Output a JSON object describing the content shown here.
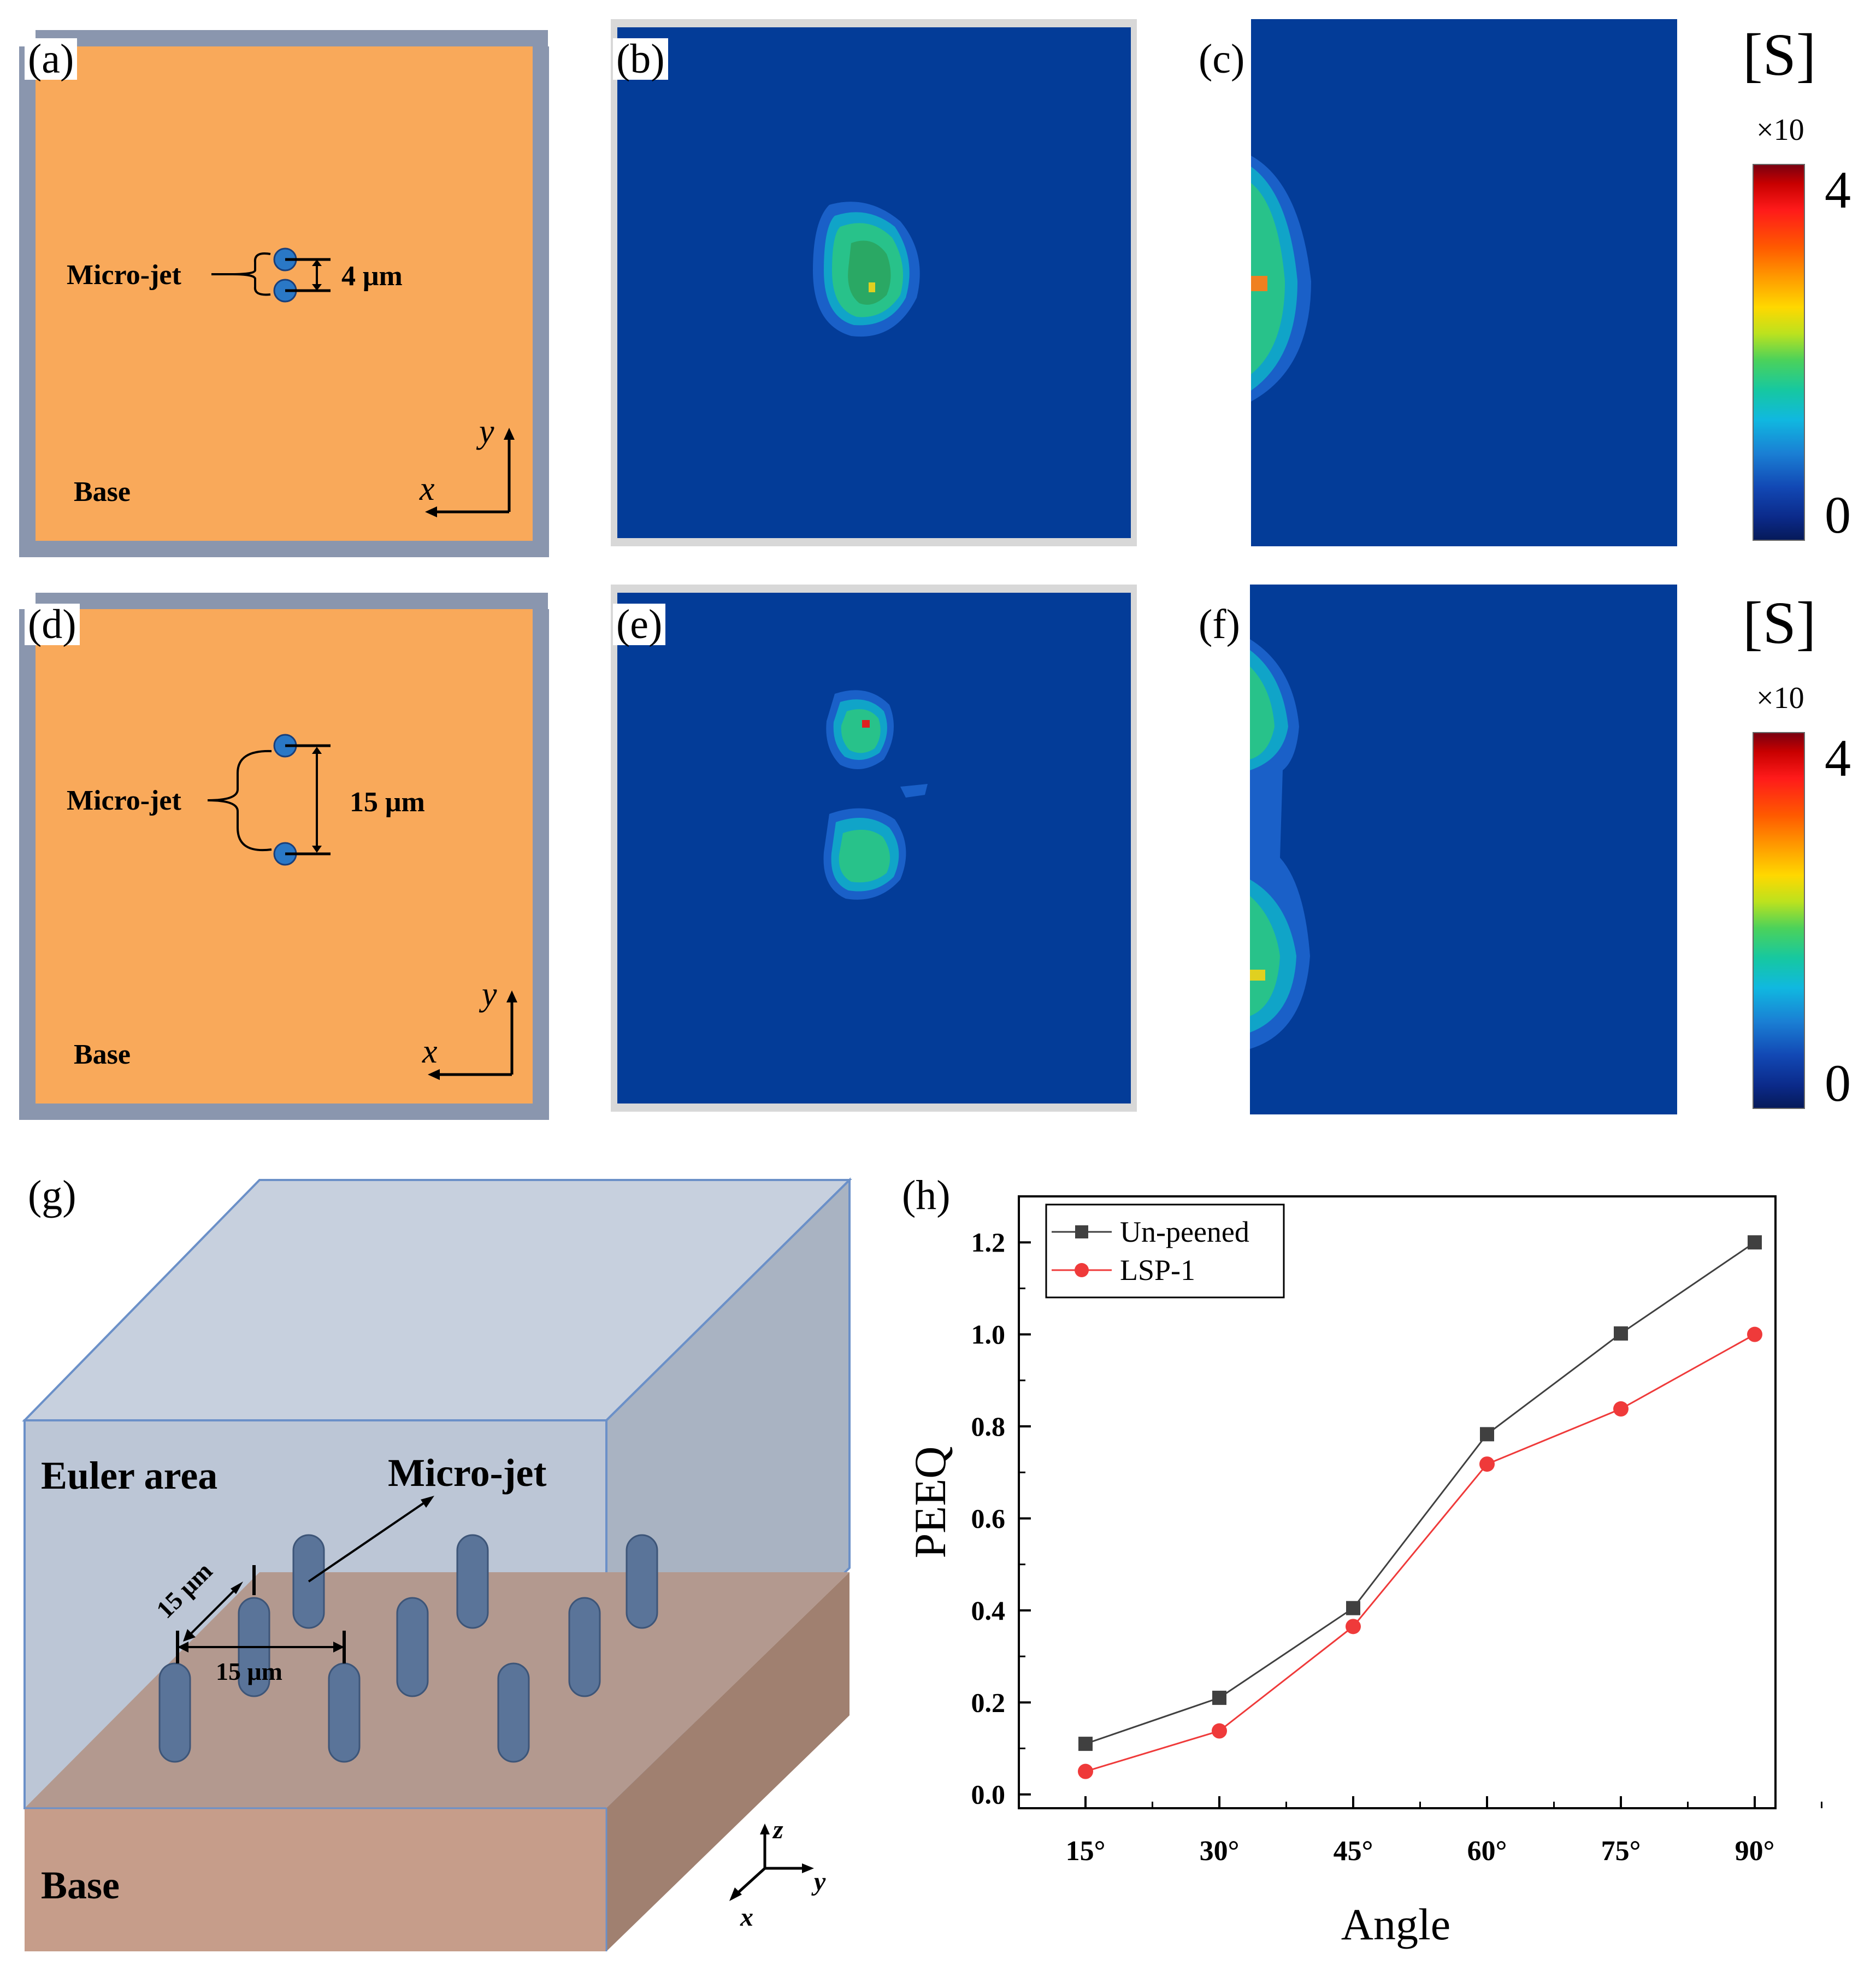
{
  "panels": {
    "a": {
      "label": "(a)",
      "microjet": "Micro-jet",
      "spacing": "4 μm",
      "base": "Base",
      "x": "x",
      "y": "y"
    },
    "b": {
      "label": "(b)"
    },
    "c": {
      "label": "(c)"
    },
    "d": {
      "label": "(d)",
      "microjet": "Micro-jet",
      "spacing": "15 μm",
      "base": "Base",
      "x": "x",
      "y": "y"
    },
    "e": {
      "label": "(e)"
    },
    "f": {
      "label": "(f)"
    },
    "g": {
      "label": "(g)",
      "euler": "Euler area",
      "microjet": "Micro-jet",
      "dim1": "15 μm",
      "dim2": "15 μm",
      "base": "Base",
      "x": "x",
      "y": "y",
      "z": "z"
    },
    "h": {
      "label": "(h)"
    }
  },
  "scales": [
    {
      "title": "[S]",
      "multiplier": "×10",
      "max": "4",
      "min": "0"
    },
    {
      "title": "[S]",
      "multiplier": "×10",
      "max": "4",
      "min": "0"
    }
  ],
  "colors": {
    "plate": "#f9a95a",
    "plate_edge": "#8a96ae",
    "field": "#033c98",
    "jet": "#2a78c6",
    "unpeened": "#404040",
    "lsp": "#ef3a3a"
  },
  "chart_data": {
    "type": "line",
    "categories": [
      "15°",
      "30°",
      "45°",
      "60°",
      "75°",
      "90°"
    ],
    "series": [
      {
        "name": "Un-peened",
        "values": [
          0.11,
          0.21,
          0.405,
          0.783,
          1.002,
          1.2
        ]
      },
      {
        "name": "LSP-1",
        "values": [
          0.05,
          0.138,
          0.365,
          0.718,
          0.838,
          1.0
        ]
      }
    ],
    "xlabel": "Angle",
    "ylabel": "PEEQ",
    "ylim": [
      -0.03,
      1.3
    ],
    "yticks": [
      "0.0",
      "0.2",
      "0.4",
      "0.6",
      "0.8",
      "1.0",
      "1.2"
    ],
    "legend": "top-left"
  }
}
